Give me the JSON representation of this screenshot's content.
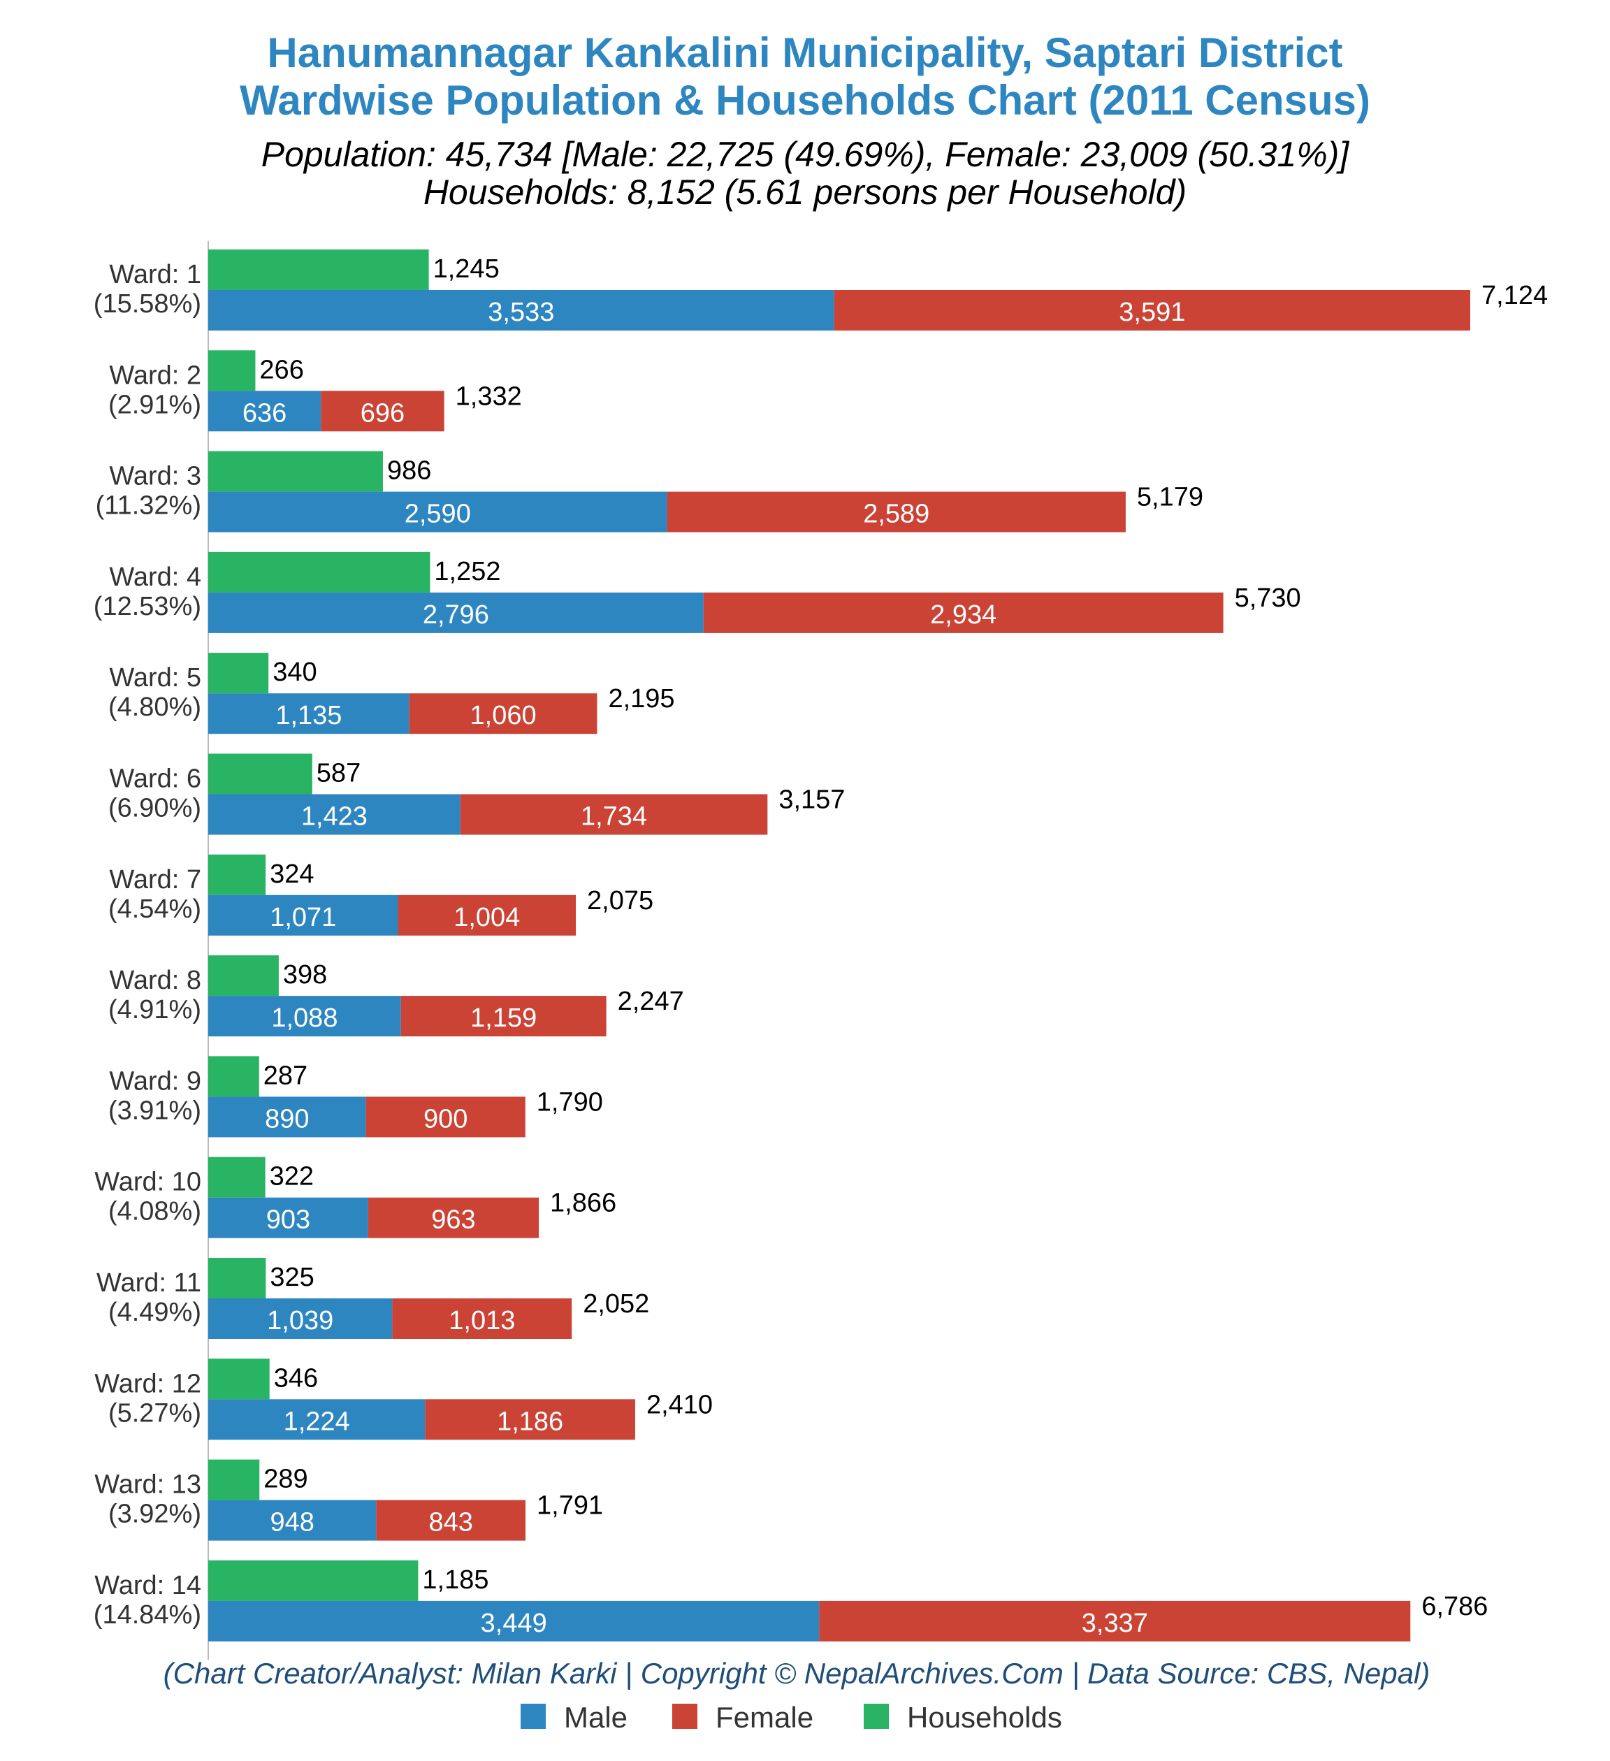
{
  "chart_data": {
    "type": "bar",
    "title": "Hanumannagar Kankalini Municipality, Saptari District",
    "title_line2": "Wardwise Population & Households Chart (2011 Census)",
    "subtitle_line1": "Population: 45,734 [Male: 22,725 (49.69%), Female: 23,009 (50.31%)]",
    "subtitle_line2": "Households: 8,152 (5.61 persons per Household)",
    "caption": "(Chart Creator/Analyst: Milan Karki | Copyright © NepalArchives.Com | Data Source: CBS, Nepal)",
    "orientation": "horizontal",
    "stacked": "Male + Female stacked; Households separate bar",
    "legend_position": "bottom",
    "grid": false,
    "xlim": [
      0,
      7124
    ],
    "colors": {
      "Male": "#2e86c1",
      "Female": "#cb4335",
      "Households": "#28b463"
    },
    "wards": [
      {
        "label": "Ward: 1",
        "pct": "(15.58%)",
        "households": 1245,
        "households_label": "1,245",
        "male": 3533,
        "male_label": "3,533",
        "female": 3591,
        "female_label": "3,591",
        "total": 7124,
        "total_label": "7,124"
      },
      {
        "label": "Ward: 2",
        "pct": "(2.91%)",
        "households": 266,
        "households_label": "266",
        "male": 636,
        "male_label": "636",
        "female": 696,
        "female_label": "696",
        "total": 1332,
        "total_label": "1,332"
      },
      {
        "label": "Ward: 3",
        "pct": "(11.32%)",
        "households": 986,
        "households_label": "986",
        "male": 2590,
        "male_label": "2,590",
        "female": 2589,
        "female_label": "2,589",
        "total": 5179,
        "total_label": "5,179"
      },
      {
        "label": "Ward: 4",
        "pct": "(12.53%)",
        "households": 1252,
        "households_label": "1,252",
        "male": 2796,
        "male_label": "2,796",
        "female": 2934,
        "female_label": "2,934",
        "total": 5730,
        "total_label": "5,730"
      },
      {
        "label": "Ward: 5",
        "pct": "(4.80%)",
        "households": 340,
        "households_label": "340",
        "male": 1135,
        "male_label": "1,135",
        "female": 1060,
        "female_label": "1,060",
        "total": 2195,
        "total_label": "2,195"
      },
      {
        "label": "Ward: 6",
        "pct": "(6.90%)",
        "households": 587,
        "households_label": "587",
        "male": 1423,
        "male_label": "1,423",
        "female": 1734,
        "female_label": "1,734",
        "total": 3157,
        "total_label": "3,157"
      },
      {
        "label": "Ward: 7",
        "pct": "(4.54%)",
        "households": 324,
        "households_label": "324",
        "male": 1071,
        "male_label": "1,071",
        "female": 1004,
        "female_label": "1,004",
        "total": 2075,
        "total_label": "2,075"
      },
      {
        "label": "Ward: 8",
        "pct": "(4.91%)",
        "households": 398,
        "households_label": "398",
        "male": 1088,
        "male_label": "1,088",
        "female": 1159,
        "female_label": "1,159",
        "total": 2247,
        "total_label": "2,247"
      },
      {
        "label": "Ward: 9",
        "pct": "(3.91%)",
        "households": 287,
        "households_label": "287",
        "male": 890,
        "male_label": "890",
        "female": 900,
        "female_label": "900",
        "total": 1790,
        "total_label": "1,790"
      },
      {
        "label": "Ward: 10",
        "pct": "(4.08%)",
        "households": 322,
        "households_label": "322",
        "male": 903,
        "male_label": "903",
        "female": 963,
        "female_label": "963",
        "total": 1866,
        "total_label": "1,866"
      },
      {
        "label": "Ward: 11",
        "pct": "(4.49%)",
        "households": 325,
        "households_label": "325",
        "male": 1039,
        "male_label": "1,039",
        "female": 1013,
        "female_label": "1,013",
        "total": 2052,
        "total_label": "2,052"
      },
      {
        "label": "Ward: 12",
        "pct": "(5.27%)",
        "households": 346,
        "households_label": "346",
        "male": 1224,
        "male_label": "1,224",
        "female": 1186,
        "female_label": "1,186",
        "total": 2410,
        "total_label": "2,410"
      },
      {
        "label": "Ward: 13",
        "pct": "(3.92%)",
        "households": 289,
        "households_label": "289",
        "male": 948,
        "male_label": "948",
        "female": 843,
        "female_label": "843",
        "total": 1791,
        "total_label": "1,791"
      },
      {
        "label": "Ward: 14",
        "pct": "(14.84%)",
        "households": 1185,
        "households_label": "1,185",
        "male": 3449,
        "male_label": "3,449",
        "female": 3337,
        "female_label": "3,337",
        "total": 6786,
        "total_label": "6,786"
      }
    ],
    "legend": [
      {
        "name": "Male",
        "color": "#2e86c1"
      },
      {
        "name": "Female",
        "color": "#cb4335"
      },
      {
        "name": "Households",
        "color": "#28b463"
      }
    ]
  }
}
